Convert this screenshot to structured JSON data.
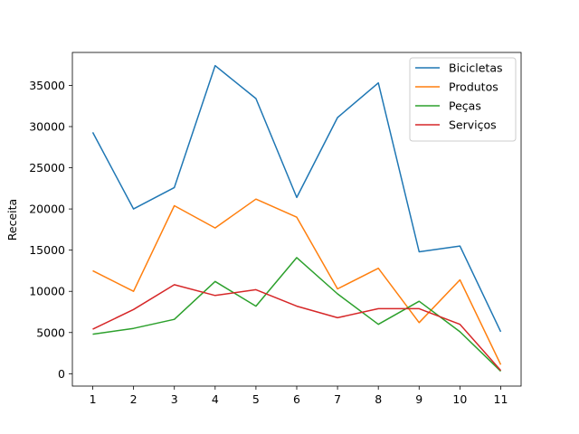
{
  "chart_data": {
    "type": "line",
    "title": "",
    "xlabel": "",
    "ylabel": "Receita",
    "x": [
      1,
      2,
      3,
      4,
      5,
      6,
      7,
      8,
      9,
      10,
      11
    ],
    "xticks": [
      "1",
      "2",
      "3",
      "4",
      "5",
      "6",
      "7",
      "8",
      "9",
      "10",
      "11"
    ],
    "yticks": [
      "0",
      "5000",
      "10000",
      "15000",
      "20000",
      "25000",
      "30000",
      "35000"
    ],
    "xlim": [
      0.5,
      11.5
    ],
    "ylim": [
      -1500,
      39000
    ],
    "grid": false,
    "legend_position": "top-right",
    "series": [
      {
        "name": "Bicicletas",
        "color": "#1f77b4",
        "values": [
          29300,
          20000,
          22600,
          37400,
          33400,
          21400,
          31100,
          35300,
          14800,
          15500,
          5100
        ]
      },
      {
        "name": "Produtos",
        "color": "#ff7f0e",
        "values": [
          12500,
          10000,
          20400,
          17700,
          21200,
          19000,
          10300,
          12800,
          6200,
          11400,
          1100
        ]
      },
      {
        "name": "Peças",
        "color": "#2ca02c",
        "values": [
          4800,
          5500,
          6600,
          11200,
          8200,
          14100,
          9700,
          6000,
          8800,
          5100,
          300
        ]
      },
      {
        "name": "Serviços",
        "color": "#d62728",
        "values": [
          5400,
          7800,
          10800,
          9500,
          10200,
          8200,
          6800,
          7900,
          7900,
          6000,
          400
        ]
      }
    ]
  }
}
